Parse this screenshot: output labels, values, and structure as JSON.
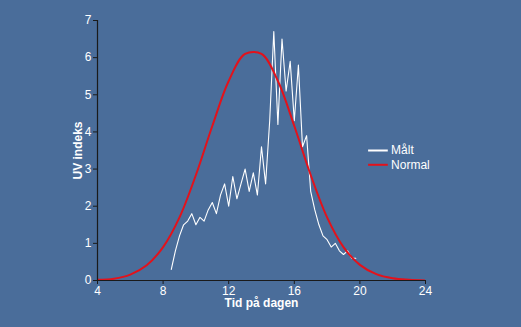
{
  "chart_data": {
    "type": "line",
    "xlabel": "Tid på dagen",
    "ylabel": "UV indeks",
    "xlim": [
      4,
      24
    ],
    "xticks": [
      4,
      8,
      12,
      16,
      20,
      24
    ],
    "ylim": [
      0,
      7
    ],
    "yticks": [
      0,
      1,
      2,
      3,
      4,
      5,
      6,
      7
    ],
    "grid": false,
    "legend": "right",
    "series": [
      {
        "name": "Målt",
        "color": "#ffffff",
        "x": [
          8.5,
          8.75,
          9,
          9.25,
          9.5,
          9.75,
          10,
          10.25,
          10.5,
          10.75,
          11,
          11.25,
          11.5,
          11.75,
          12,
          12.25,
          12.5,
          12.75,
          13,
          13.25,
          13.5,
          13.75,
          14,
          14.25,
          14.5,
          14.75,
          15,
          15.25,
          15.5,
          15.75,
          16,
          16.25,
          16.5,
          16.75,
          17,
          17.25,
          17.5,
          17.75,
          18,
          18.25,
          18.5,
          18.75,
          19,
          19.25,
          19.5,
          19.75
        ],
        "values": [
          0.3,
          0.8,
          1.2,
          1.5,
          1.6,
          1.8,
          1.5,
          1.7,
          1.6,
          1.9,
          2.1,
          1.8,
          2.3,
          2.6,
          2.0,
          2.8,
          2.2,
          2.6,
          3.0,
          2.4,
          2.9,
          2.3,
          3.6,
          2.6,
          4.3,
          6.7,
          4.2,
          6.5,
          5.1,
          5.9,
          4.3,
          5.8,
          3.6,
          3.9,
          2.4,
          1.9,
          1.5,
          1.2,
          1.1,
          0.9,
          1.0,
          0.8,
          0.7,
          0.8,
          0.6,
          0.6
        ]
      },
      {
        "name": "Normal",
        "color": "#e3121b",
        "x": [
          4,
          5,
          6,
          7,
          8,
          9,
          10,
          11,
          12,
          13,
          14,
          15,
          16,
          17,
          18,
          19,
          20,
          21,
          22,
          23,
          24
        ],
        "values": [
          0.02,
          0.05,
          0.16,
          0.41,
          0.9,
          1.7,
          2.84,
          4.16,
          5.37,
          6.1,
          6.1,
          5.37,
          4.16,
          2.84,
          1.7,
          0.9,
          0.42,
          0.17,
          0.06,
          0.02,
          0
        ]
      }
    ]
  }
}
